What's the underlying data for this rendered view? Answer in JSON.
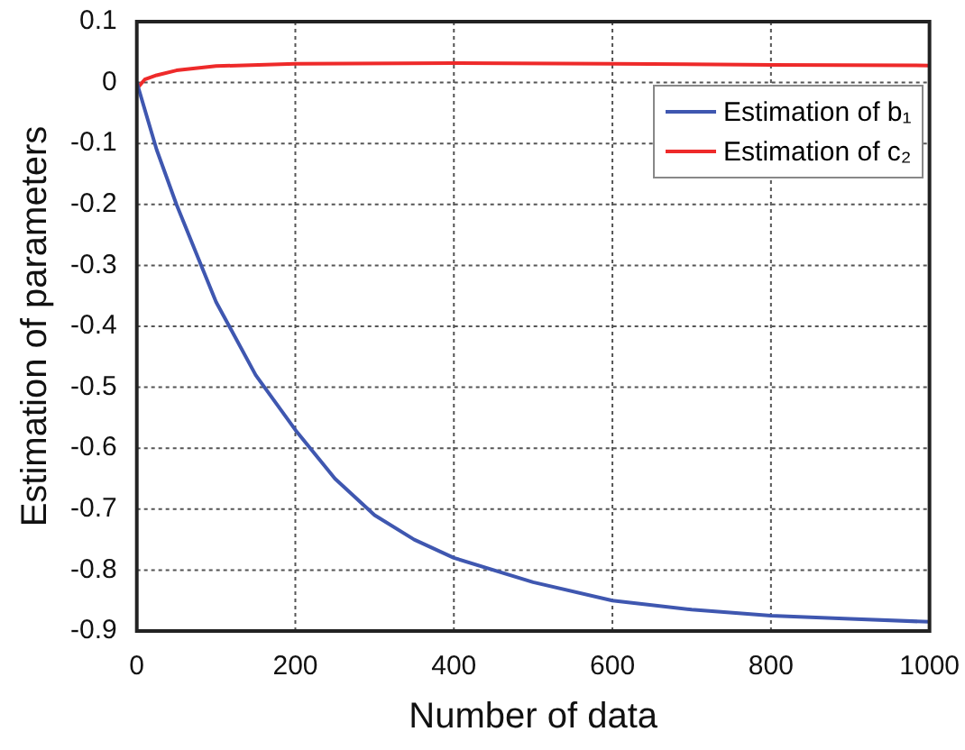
{
  "chart_data": {
    "type": "line",
    "xlabel": "Number of data",
    "ylabel": "Estimation of parameters",
    "xlim": [
      0,
      1000
    ],
    "xticks": [
      0,
      200,
      400,
      600,
      800,
      1000
    ],
    "ylim": [
      -0.9,
      0.1
    ],
    "yticks": [
      0.1,
      0,
      -0.1,
      -0.2,
      -0.3,
      -0.4,
      -0.5,
      -0.6,
      -0.7,
      -0.8,
      -0.9
    ],
    "grid": true,
    "legend": "top right",
    "line_style": "solid",
    "marker": "none",
    "series": [
      {
        "name": "Estimation of b₁",
        "color": "#3f57b0",
        "x": [
          0,
          25,
          50,
          75,
          100,
          150,
          200,
          250,
          300,
          350,
          400,
          500,
          600,
          700,
          800,
          900,
          1000
        ],
        "values": [
          0,
          -0.11,
          -0.2,
          -0.28,
          -0.36,
          -0.48,
          -0.57,
          -0.65,
          -0.71,
          -0.75,
          -0.78,
          -0.82,
          -0.85,
          -0.865,
          -0.875,
          -0.88,
          -0.885
        ]
      },
      {
        "name": "Estimation of c₂",
        "color": "#ee2a2a",
        "x": [
          0,
          10,
          25,
          50,
          100,
          200,
          400,
          600,
          800,
          1000
        ],
        "values": [
          -0.01,
          0.005,
          0.012,
          0.02,
          0.027,
          0.031,
          0.032,
          0.031,
          0.029,
          0.028
        ]
      }
    ]
  }
}
